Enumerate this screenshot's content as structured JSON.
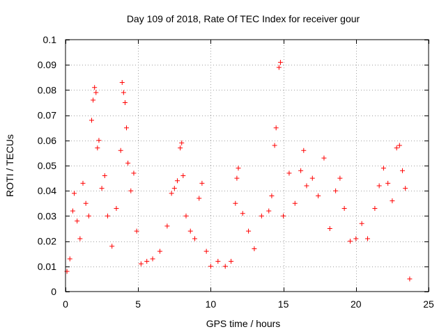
{
  "chart_data": {
    "type": "scatter",
    "title": "Day 109 of 2018, Rate Of TEC Index for receiver gour",
    "xlabel": "GPS time / hours",
    "ylabel": "ROTI / TECUs",
    "xlim": [
      0,
      25
    ],
    "ylim": [
      0,
      0.1
    ],
    "xticks": [
      "0",
      "5",
      "10",
      "15",
      "20",
      "25"
    ],
    "yticks": [
      "0",
      "0.01",
      "0.02",
      "0.03",
      "0.04",
      "0.05",
      "0.06",
      "0.07",
      "0.08",
      "0.09",
      "0.1"
    ],
    "grid": true,
    "marker": "plus",
    "color": "#ff0000",
    "series": [
      {
        "points": [
          [
            0.1,
            0.008
          ],
          [
            0.3,
            0.013
          ],
          [
            0.5,
            0.032
          ],
          [
            0.6,
            0.039
          ],
          [
            0.8,
            0.028
          ],
          [
            1.0,
            0.021
          ],
          [
            1.2,
            0.043
          ],
          [
            1.4,
            0.035
          ],
          [
            1.6,
            0.03
          ],
          [
            1.8,
            0.068
          ],
          [
            1.9,
            0.076
          ],
          [
            2.0,
            0.081
          ],
          [
            2.1,
            0.079
          ],
          [
            2.2,
            0.057
          ],
          [
            2.3,
            0.06
          ],
          [
            2.5,
            0.041
          ],
          [
            2.7,
            0.046
          ],
          [
            2.9,
            0.03
          ],
          [
            3.2,
            0.018
          ],
          [
            3.5,
            0.033
          ],
          [
            3.8,
            0.056
          ],
          [
            3.9,
            0.083
          ],
          [
            4.0,
            0.079
          ],
          [
            4.1,
            0.075
          ],
          [
            4.2,
            0.065
          ],
          [
            4.3,
            0.051
          ],
          [
            4.5,
            0.04
          ],
          [
            4.7,
            0.047
          ],
          [
            4.9,
            0.024
          ],
          [
            5.2,
            0.011
          ],
          [
            5.6,
            0.012
          ],
          [
            6.0,
            0.013
          ],
          [
            6.5,
            0.016
          ],
          [
            7.0,
            0.026
          ],
          [
            7.3,
            0.039
          ],
          [
            7.5,
            0.041
          ],
          [
            7.7,
            0.044
          ],
          [
            7.9,
            0.057
          ],
          [
            8.0,
            0.059
          ],
          [
            8.1,
            0.046
          ],
          [
            8.3,
            0.03
          ],
          [
            8.6,
            0.024
          ],
          [
            8.9,
            0.021
          ],
          [
            9.2,
            0.037
          ],
          [
            9.4,
            0.043
          ],
          [
            9.7,
            0.016
          ],
          [
            10.0,
            0.01
          ],
          [
            10.5,
            0.012
          ],
          [
            11.0,
            0.01
          ],
          [
            11.4,
            0.012
          ],
          [
            11.7,
            0.035
          ],
          [
            11.8,
            0.045
          ],
          [
            11.9,
            0.049
          ],
          [
            12.2,
            0.031
          ],
          [
            12.6,
            0.024
          ],
          [
            13.0,
            0.017
          ],
          [
            13.5,
            0.03
          ],
          [
            14.0,
            0.032
          ],
          [
            14.2,
            0.038
          ],
          [
            14.4,
            0.058
          ],
          [
            14.5,
            0.065
          ],
          [
            14.7,
            0.089
          ],
          [
            14.8,
            0.091
          ],
          [
            15.0,
            0.03
          ],
          [
            15.4,
            0.047
          ],
          [
            15.8,
            0.035
          ],
          [
            16.2,
            0.048
          ],
          [
            16.4,
            0.056
          ],
          [
            16.6,
            0.042
          ],
          [
            17.0,
            0.045
          ],
          [
            17.4,
            0.038
          ],
          [
            17.8,
            0.053
          ],
          [
            18.2,
            0.025
          ],
          [
            18.6,
            0.04
          ],
          [
            18.9,
            0.045
          ],
          [
            19.2,
            0.033
          ],
          [
            19.6,
            0.02
          ],
          [
            20.0,
            0.021
          ],
          [
            20.4,
            0.027
          ],
          [
            20.8,
            0.021
          ],
          [
            21.3,
            0.033
          ],
          [
            21.6,
            0.042
          ],
          [
            21.9,
            0.049
          ],
          [
            22.2,
            0.043
          ],
          [
            22.5,
            0.036
          ],
          [
            22.8,
            0.057
          ],
          [
            23.0,
            0.058
          ],
          [
            23.2,
            0.048
          ],
          [
            23.4,
            0.041
          ],
          [
            23.7,
            0.005
          ]
        ]
      }
    ]
  }
}
